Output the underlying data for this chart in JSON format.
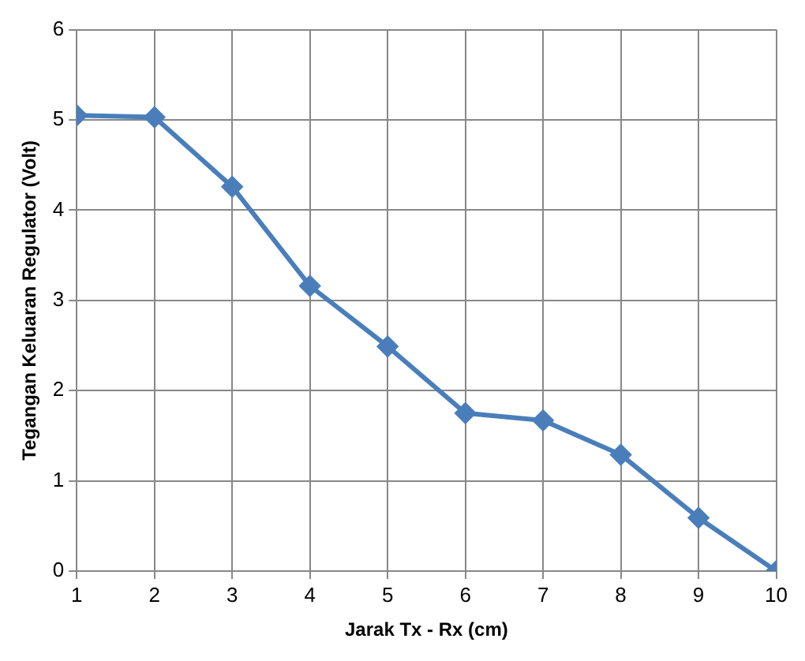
{
  "chart_data": {
    "type": "line",
    "xlabel": "Jarak Tx - Rx (cm)",
    "ylabel": "Tegangan Keluaran Regulator (Volt)",
    "x": [
      1,
      2,
      3,
      4,
      5,
      6,
      7,
      8,
      9,
      10
    ],
    "series": [
      {
        "color": "#4a7ebb",
        "values": [
          5.05,
          5.03,
          4.26,
          3.16,
          2.49,
          1.75,
          1.67,
          1.29,
          0.59,
          0
        ]
      }
    ],
    "xlim": [
      1,
      10
    ],
    "xticks": [
      1,
      2,
      3,
      4,
      5,
      6,
      7,
      8,
      9,
      10
    ],
    "ylim": [
      0,
      6
    ],
    "yticks": [
      0,
      1,
      2,
      3,
      4,
      5,
      6
    ],
    "grid": true,
    "legend": false,
    "marker": "diamond",
    "line_style": "solid"
  }
}
